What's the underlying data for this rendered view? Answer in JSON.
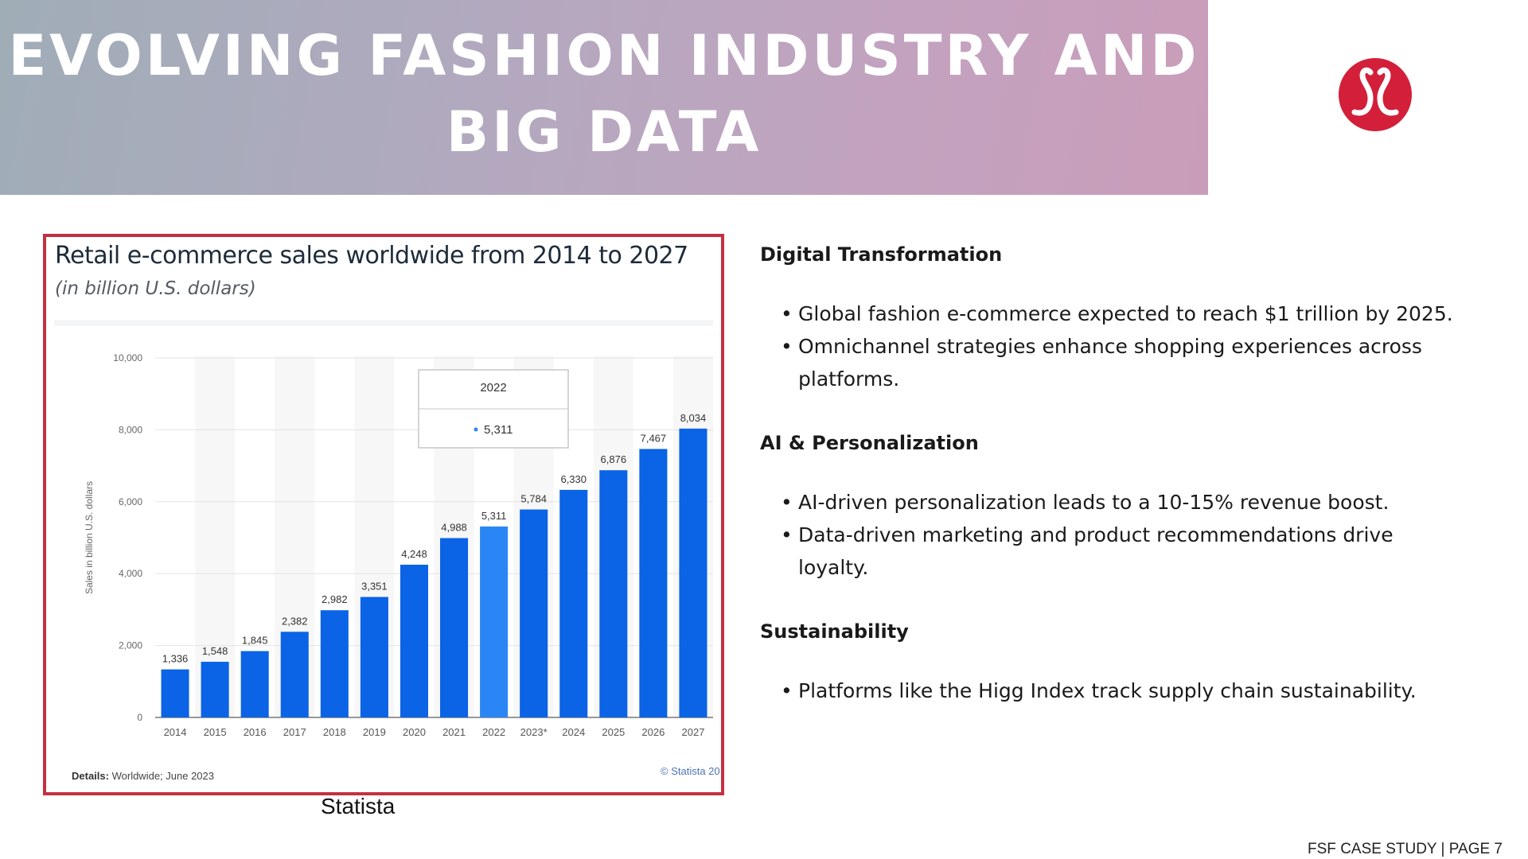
{
  "banner": {
    "title": "EVOLVING FASHION INDUSTRY AND BIG DATA"
  },
  "logo": {
    "icon": "lululemon-logo-icon",
    "color": "#d31f39"
  },
  "chart_data": {
    "type": "bar",
    "title": "Retail e-commerce sales worldwide from 2014 to 2027",
    "subtitle": "(in billion U.S. dollars)",
    "ylabel": "Sales in billion U.S. dollars",
    "xlabel": "",
    "categories": [
      "2014",
      "2015",
      "2016",
      "2017",
      "2018",
      "2019",
      "2020",
      "2021",
      "2022",
      "2023*",
      "2024",
      "2025",
      "2026",
      "2027"
    ],
    "values": [
      1336,
      1548,
      1845,
      2382,
      2982,
      3351,
      4248,
      4988,
      5311,
      5784,
      6330,
      6876,
      7467,
      8034
    ],
    "value_labels": [
      "1,336",
      "1,548",
      "1,845",
      "2,382",
      "2,982",
      "3,351",
      "4,248",
      "4,988",
      "5,311",
      "5,784",
      "6,330",
      "6,876",
      "7,467",
      "8,034"
    ],
    "ylim": [
      0,
      10000
    ],
    "yticks": [
      0,
      2000,
      4000,
      6000,
      8000,
      10000
    ],
    "ytick_labels": [
      "0",
      "2,000",
      "4,000",
      "6,000",
      "8,000",
      "10,000"
    ],
    "grid": true,
    "highlight_index": 8,
    "bar_color": "#0b63e6",
    "highlight_color": "#2b86f5",
    "tooltip": {
      "title": "2022",
      "value": "5,311",
      "placement": "top-center"
    },
    "details_label": "Details:",
    "details": "Worldwide; June 2023",
    "copyright": "© Statista 20"
  },
  "caption": "Statista",
  "sections": [
    {
      "heading": "Digital Transformation",
      "bullets": [
        "Global fashion e-commerce expected to reach $1 trillion by 2025.",
        "Omnichannel strategies enhance shopping experiences across platforms."
      ]
    },
    {
      "heading": "AI & Personalization",
      "bullets": [
        "AI-driven personalization leads to a 10-15% revenue boost.",
        "Data-driven marketing and product recommendations drive loyalty."
      ]
    },
    {
      "heading": "Sustainability",
      "bullets": [
        "Platforms like the Higg Index track supply chain sustainability."
      ]
    }
  ],
  "footer": "FSF CASE STUDY   |  PAGE 7"
}
